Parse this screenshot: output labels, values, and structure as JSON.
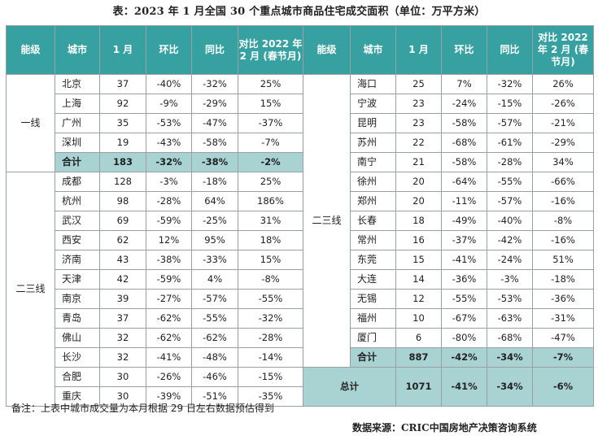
{
  "title": "表：2023 年 1 月全国 30 个重点城市商品住宅成交面积（单位：万平方米）",
  "headers": [
    "能级",
    "城市",
    "1 月",
    "环比",
    "同比",
    "对比 2022 年 2 月 (春节月)"
  ],
  "colors": {
    "header_bg": "#37a0a0",
    "subtotal_bg": "#a9d2d2",
    "border": "#9aa0a0"
  },
  "left": {
    "tier1_label": "一线",
    "tier1_rows": [
      [
        "北京",
        "37",
        "-40%",
        "-32%",
        "25%"
      ],
      [
        "上海",
        "92",
        "-9%",
        "-29%",
        "15%"
      ],
      [
        "广州",
        "35",
        "-53%",
        "-47%",
        "-37%"
      ],
      [
        "深圳",
        "19",
        "-43%",
        "-58%",
        "-7%"
      ]
    ],
    "tier1_subtotal": [
      "合计",
      "183",
      "-32%",
      "-38%",
      "-2%"
    ],
    "tier23_label": "二三线",
    "tier23_rows": [
      [
        "成都",
        "128",
        "-3%",
        "-18%",
        "25%"
      ],
      [
        "杭州",
        "98",
        "-28%",
        "64%",
        "186%"
      ],
      [
        "武汉",
        "69",
        "-59%",
        "-25%",
        "31%"
      ],
      [
        "西安",
        "62",
        "12%",
        "95%",
        "18%"
      ],
      [
        "济南",
        "43",
        "-38%",
        "-33%",
        "15%"
      ],
      [
        "天津",
        "42",
        "-59%",
        "4%",
        "-8%"
      ],
      [
        "南京",
        "39",
        "-27%",
        "-57%",
        "-55%"
      ],
      [
        "青岛",
        "37",
        "-62%",
        "-55%",
        "-32%"
      ],
      [
        "佛山",
        "32",
        "-62%",
        "-62%",
        "-28%"
      ],
      [
        "长沙",
        "32",
        "-41%",
        "-48%",
        "-14%"
      ],
      [
        "合肥",
        "30",
        "-26%",
        "-46%",
        "-15%"
      ],
      [
        "重庆",
        "30",
        "-39%",
        "-51%",
        "-35%"
      ]
    ]
  },
  "right": {
    "tier_label": "二三线",
    "rows": [
      [
        "海口",
        "25",
        "7%",
        "-32%",
        "26%"
      ],
      [
        "宁波",
        "23",
        "-24%",
        "-15%",
        "-26%"
      ],
      [
        "昆明",
        "23",
        "-58%",
        "-57%",
        "-21%"
      ],
      [
        "苏州",
        "22",
        "-68%",
        "-61%",
        "-29%"
      ],
      [
        "南宁",
        "21",
        "-58%",
        "-28%",
        "34%"
      ],
      [
        "徐州",
        "20",
        "-64%",
        "-55%",
        "-66%"
      ],
      [
        "郑州",
        "20",
        "-11%",
        "-57%",
        "-16%"
      ],
      [
        "长春",
        "18",
        "-49%",
        "-40%",
        "-8%"
      ],
      [
        "常州",
        "16",
        "-37%",
        "-42%",
        "-16%"
      ],
      [
        "东莞",
        "15",
        "-41%",
        "-24%",
        "51%"
      ],
      [
        "大连",
        "14",
        "-36%",
        "-3%",
        "-18%"
      ],
      [
        "无锡",
        "12",
        "-55%",
        "-53%",
        "-36%"
      ],
      [
        "福州",
        "10",
        "-67%",
        "-63%",
        "-31%"
      ],
      [
        "厦门",
        "6",
        "-80%",
        "-68%",
        "-47%"
      ]
    ],
    "subtotal": [
      "合计",
      "887",
      "-42%",
      "-34%",
      "-7%"
    ],
    "total": [
      "总计",
      "1071",
      "-41%",
      "-34%",
      "-6%"
    ]
  },
  "note": "备注：上表中城市成交量为本月根据 29 日左右数据预估得到",
  "source": "数据来源：CRIC中国房地产决策咨询系统"
}
